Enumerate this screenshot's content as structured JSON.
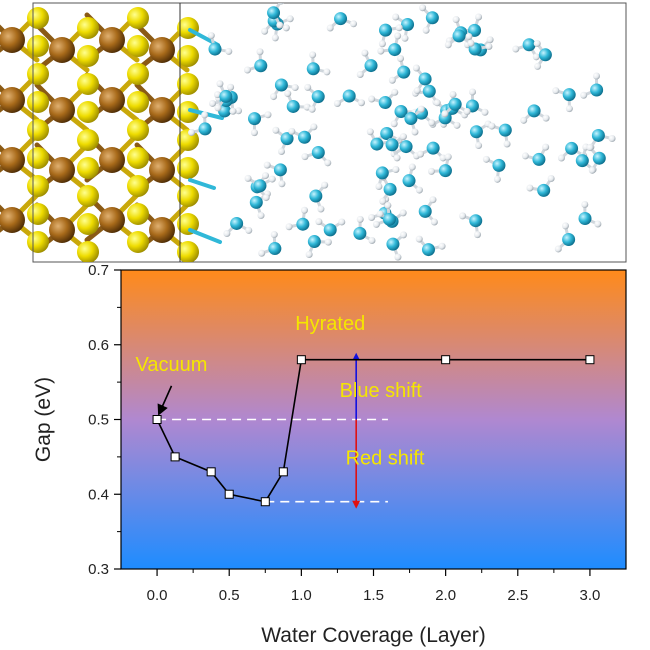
{
  "chart_data": {
    "type": "line",
    "xlabel": "Water Coverage (Layer)",
    "ylabel": "Gap (eV)",
    "xlim": [
      -0.25,
      3.25
    ],
    "ylim": [
      0.3,
      0.7
    ],
    "x_ticks": [
      "0.0",
      "0.5",
      "1.0",
      "1.5",
      "2.0",
      "2.5",
      "3.0"
    ],
    "y_ticks": [
      "0.3",
      "0.4",
      "0.5",
      "0.6",
      "0.7"
    ],
    "series": [
      {
        "x": [
          0.0,
          0.125,
          0.375,
          0.5,
          0.75,
          0.875,
          1.0,
          2.0,
          3.0
        ],
        "y": [
          0.5,
          0.45,
          0.43,
          0.4,
          0.39,
          0.43,
          0.58,
          0.58,
          0.58
        ],
        "color": "#000000",
        "marker": "open-square"
      }
    ],
    "reference_lines": [
      {
        "y": 0.5,
        "x_start": 0.0,
        "x_end": 1.6,
        "style": "dashed",
        "color": "#ffffff"
      },
      {
        "y": 0.39,
        "x_start": 0.75,
        "x_end": 1.6,
        "style": "dashed",
        "color": "#ffffff"
      }
    ],
    "arrows": [
      {
        "name": "blue-shift-arrow",
        "x": 1.38,
        "y_from": 0.5,
        "y_to": 0.58,
        "color": "#1010e0"
      },
      {
        "name": "red-shift-arrow",
        "x": 1.38,
        "y_from": 0.5,
        "y_to": 0.39,
        "color": "#e01010"
      },
      {
        "name": "vacuum-pointer-arrow",
        "x_from": 0.1,
        "y_from": 0.545,
        "x_to": 0.0,
        "y_to": 0.505,
        "color": "#000000"
      }
    ],
    "annotations": [
      {
        "name": "hydrated-label",
        "text": "Hyrated",
        "x": 1.2,
        "y": 0.62,
        "color": "#f5e600"
      },
      {
        "name": "blue-shift-label",
        "text": "Blue shift",
        "x": 1.55,
        "y": 0.53,
        "color": "#f5e600"
      },
      {
        "name": "red-shift-label",
        "text": "Red shift",
        "x": 1.58,
        "y": 0.44,
        "color": "#f5e600"
      },
      {
        "name": "vacuum-label",
        "text": "Vacuum",
        "x": 0.1,
        "y": 0.565,
        "color": "#f5e600"
      }
    ],
    "background_gradient": [
      "#ff8a1a",
      "#1e8cff"
    ],
    "grid": false,
    "legend": "none"
  }
}
